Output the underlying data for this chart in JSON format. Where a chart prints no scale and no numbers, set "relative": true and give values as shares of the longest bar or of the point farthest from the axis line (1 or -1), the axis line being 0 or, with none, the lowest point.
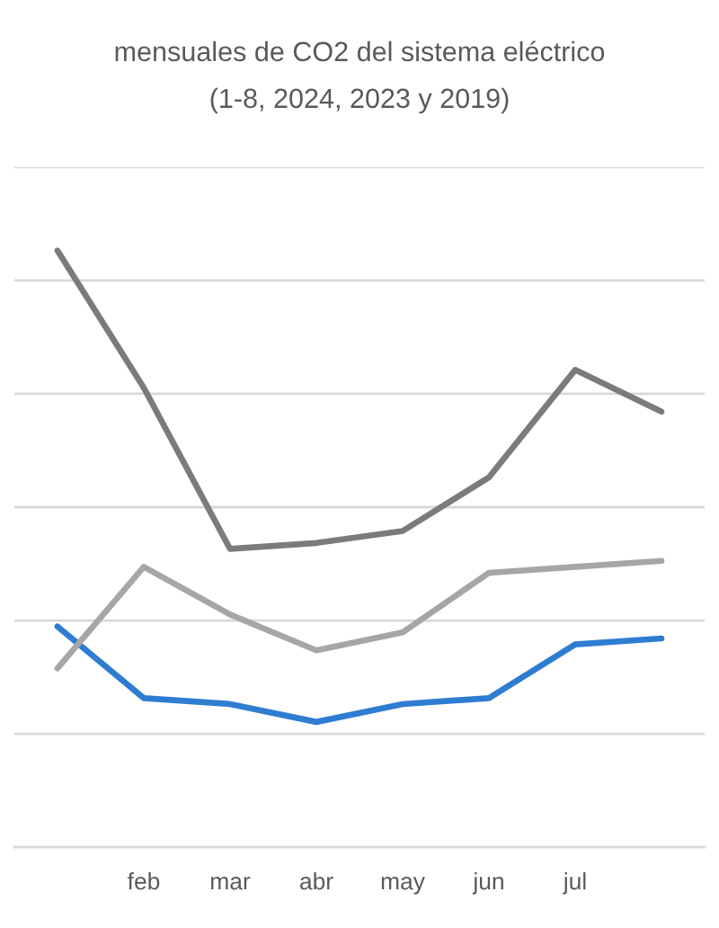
{
  "chart_data": {
    "type": "line",
    "title": "mensuales de CO2 del sistema eléctrico",
    "subtitle": "(1-8, 2024, 2023 y 2019)",
    "categories": [
      null,
      "feb",
      "mar",
      "abr",
      "may",
      "jun",
      "jul",
      null
    ],
    "relative": true,
    "grid": "y",
    "tick_labels": "x",
    "line_style": "solid",
    "series": [
      {
        "color": "#2e7dd1",
        "values": [
          0.37,
          0.25,
          0.24,
          0.21,
          0.24,
          0.25,
          0.34,
          0.35
        ]
      },
      {
        "color": "#a6a6a6",
        "values": [
          0.3,
          0.47,
          0.39,
          0.33,
          0.36,
          0.46,
          0.47,
          0.48
        ]
      },
      {
        "color": "#7b7b7b",
        "values": [
          1.0,
          0.77,
          0.5,
          0.51,
          0.53,
          0.62,
          0.8,
          0.73
        ]
      }
    ]
  }
}
